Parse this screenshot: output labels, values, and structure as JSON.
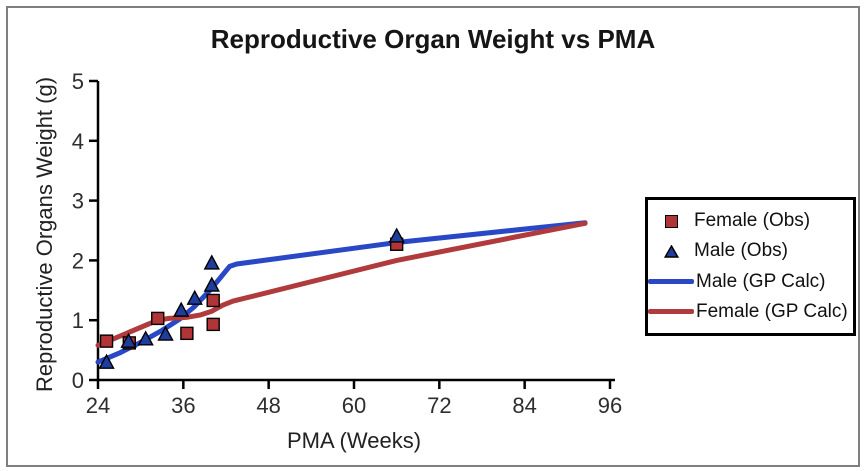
{
  "colors": {
    "frame_border": "#7f7f7f",
    "axis": "#000000",
    "tick_text": "#2e2e2e",
    "female_marker": "#b13437",
    "male_marker": "#1e3d9c",
    "male_line": "#2948c6",
    "female_line": "#b03a3c",
    "legend_border": "#000000"
  },
  "chart_data": {
    "type": "scatter",
    "title": "Reproductive Organ Weight vs PMA",
    "xlabel": "PMA (Weeks)",
    "ylabel": "Reproductive Organs Weight (g)",
    "xlim": [
      24,
      96
    ],
    "ylim": [
      0,
      5
    ],
    "xticks": [
      24,
      36,
      48,
      60,
      72,
      84,
      96
    ],
    "yticks": [
      0,
      1,
      2,
      3,
      4,
      5
    ],
    "grid": false,
    "legend_position": "right-outside-box",
    "series": [
      {
        "name": "Female (Obs)",
        "kind": "scatter",
        "marker": "square",
        "color": "#b13437",
        "points": [
          [
            25.2,
            0.65
          ],
          [
            28.4,
            0.62
          ],
          [
            32.4,
            1.03
          ],
          [
            36.5,
            0.78
          ],
          [
            40.2,
            1.33
          ],
          [
            40.2,
            0.93
          ],
          [
            66,
            2.27
          ]
        ]
      },
      {
        "name": "Male (Obs)",
        "kind": "scatter",
        "marker": "triangle",
        "color": "#1e3d9c",
        "points": [
          [
            25.2,
            0.29
          ],
          [
            28.3,
            0.64
          ],
          [
            30.7,
            0.68
          ],
          [
            33.5,
            0.76
          ],
          [
            35.7,
            1.16
          ],
          [
            37.6,
            1.36
          ],
          [
            40.0,
            1.58
          ],
          [
            40.0,
            1.95
          ],
          [
            66,
            2.4
          ]
        ]
      },
      {
        "name": "Male (GP Calc)",
        "kind": "line",
        "color": "#2948c6",
        "points": [
          [
            24,
            0.3
          ],
          [
            27,
            0.45
          ],
          [
            30,
            0.63
          ],
          [
            33,
            0.83
          ],
          [
            35.5,
            1.02
          ],
          [
            37.5,
            1.22
          ],
          [
            39.5,
            1.47
          ],
          [
            41,
            1.68
          ],
          [
            42.5,
            1.9
          ],
          [
            43.5,
            1.94
          ],
          [
            66,
            2.3
          ],
          [
            92.5,
            2.63
          ]
        ]
      },
      {
        "name": "Female (GP Calc)",
        "kind": "line",
        "color": "#b03a3c",
        "points": [
          [
            24,
            0.58
          ],
          [
            28,
            0.78
          ],
          [
            32.4,
            1.0
          ],
          [
            34,
            1.03
          ],
          [
            36.6,
            1.05
          ],
          [
            38.5,
            1.09
          ],
          [
            40,
            1.15
          ],
          [
            41.5,
            1.25
          ],
          [
            43,
            1.32
          ],
          [
            66,
            2.0
          ],
          [
            92.5,
            2.62
          ]
        ]
      }
    ]
  }
}
